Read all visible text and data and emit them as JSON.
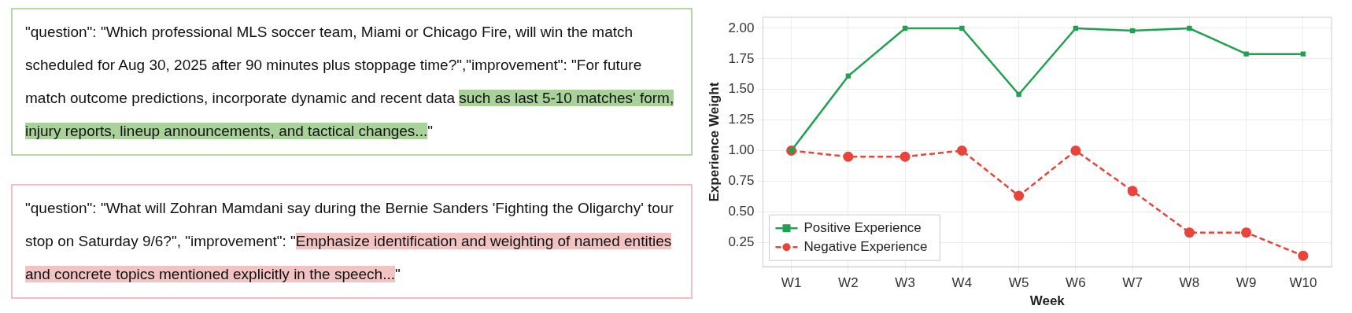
{
  "chart_data": [
    {
      "type": "other",
      "annotations": [
        "\"question\": \"Which professional MLS soccer team, Miami or Chicago Fire, will win the match scheduled for Aug 30, 2025 after 90 minutes plus stoppage time?\",\"improvement\": \"For future match outcome predictions, incorporate dynamic and recent data ",
        "such as last 5-10 matches' form, injury reports, lineup announcements, and tactical changes...",
        "\"",
        "\"question\": \"What will Zohran Mamdani say during the Bernie Sanders 'Fighting the Oligarchy' tour stop on Saturday 9/6?\", \"improvement\": \"",
        "Emphasize identification and weighting of named entities and concrete topics mentioned explicitly in the speech...",
        "\""
      ]
    },
    {
      "type": "line",
      "xlabel": "Week",
      "ylabel": "Experience Weight",
      "categories": [
        "W1",
        "W2",
        "W3",
        "W4",
        "W5",
        "W6",
        "W7",
        "W8",
        "W9",
        "W10"
      ],
      "series": [
        {
          "name": "Positive Experience",
          "color": "#22a052",
          "marker": "square",
          "line_style": "solid",
          "values": [
            1.0,
            1.61,
            2.0,
            2.0,
            1.46,
            2.0,
            1.98,
            2.0,
            1.79,
            1.79
          ]
        },
        {
          "name": "Negative Experience",
          "color": "#e8443a",
          "marker": "circle",
          "line_style": "dashed",
          "values": [
            1.0,
            0.95,
            0.95,
            1.0,
            0.63,
            1.0,
            0.67,
            0.33,
            0.33,
            0.14
          ]
        }
      ],
      "ylim": [
        0.05,
        2.09
      ],
      "yticks": [
        0.25,
        {
          "value": 0.5,
          "label": "0.50"
        },
        0.75,
        {
          "value": 1,
          "label": "1.00"
        },
        1.25,
        {
          "value": 1.5,
          "label": "1.50"
        },
        1.75,
        {
          "value": 2,
          "label": "2.00"
        }
      ],
      "grid": true,
      "legend": "bottom left"
    }
  ]
}
